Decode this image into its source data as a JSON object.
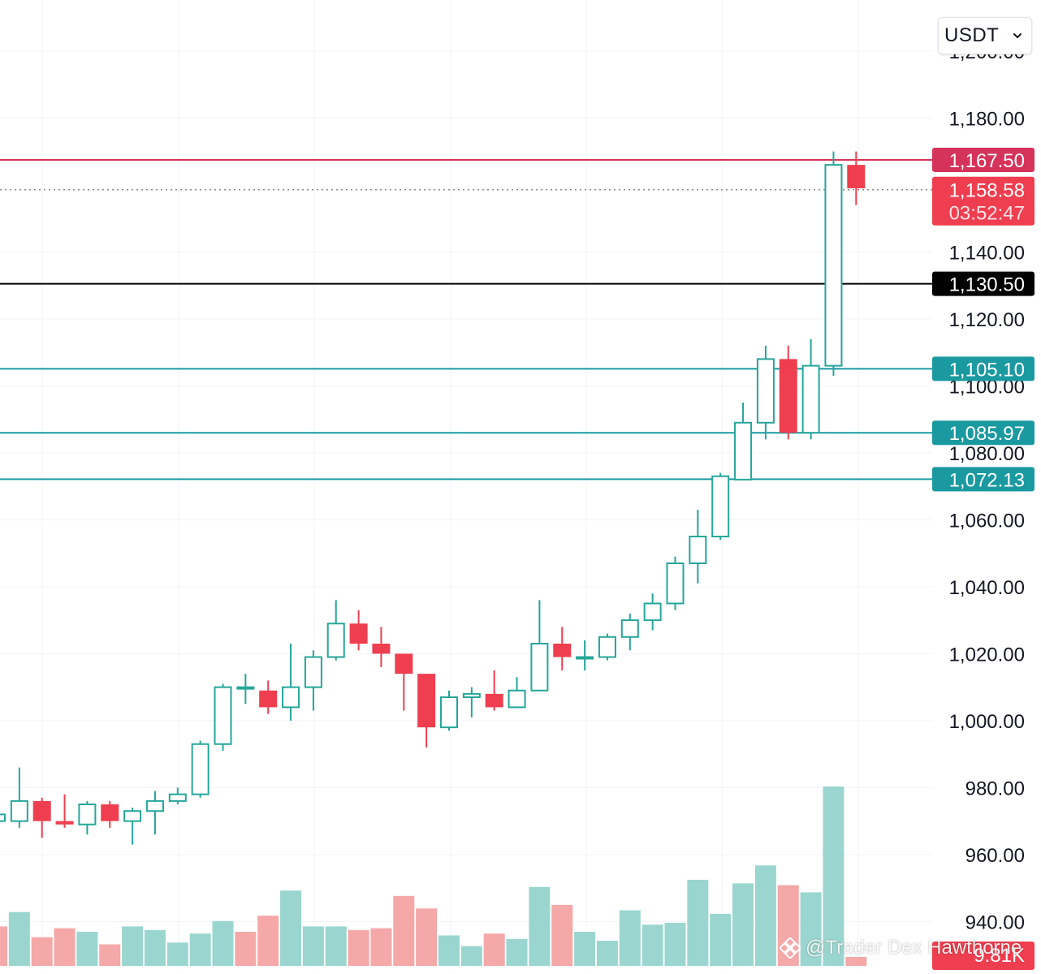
{
  "currency_select": {
    "value": "USDT"
  },
  "watermark": {
    "text": "@Trader Dex Hawthorne"
  },
  "colors": {
    "up": "#26a69a",
    "down": "#ef3e4f",
    "up_volume": "#9ad6cf",
    "down_volume": "#f5a8a8",
    "grid": "#f0f3fa",
    "axis_text": "#131722",
    "resistance_line": "#d6335a",
    "level_line_black": "#000000",
    "support_line": "#1a9aa0"
  },
  "chart_data": {
    "type": "candlestick",
    "price_axis": {
      "ticks": [
        "1,200.00",
        "1,180.00",
        "1,140.00",
        "1,120.00",
        "1,100.00",
        "1,080.00",
        "1,060.00",
        "1,040.00",
        "1,020.00",
        "1,000.00",
        "980.00",
        "960.00",
        "940.00"
      ],
      "ylim": [
        935,
        1207
      ]
    },
    "candles": [
      {
        "o": 970,
        "h": 975,
        "l": 968,
        "c": 972
      },
      {
        "o": 970,
        "h": 986,
        "l": 968,
        "c": 976
      },
      {
        "o": 976,
        "h": 977,
        "l": 965,
        "c": 970
      },
      {
        "o": 970,
        "h": 978,
        "l": 968,
        "c": 969
      },
      {
        "o": 969,
        "h": 976,
        "l": 966,
        "c": 975
      },
      {
        "o": 975,
        "h": 976,
        "l": 968,
        "c": 970
      },
      {
        "o": 970,
        "h": 974,
        "l": 963,
        "c": 973
      },
      {
        "o": 973,
        "h": 979,
        "l": 966,
        "c": 976
      },
      {
        "o": 976,
        "h": 980,
        "l": 975,
        "c": 978
      },
      {
        "o": 978,
        "h": 994,
        "l": 977,
        "c": 993
      },
      {
        "o": 993,
        "h": 1011,
        "l": 991,
        "c": 1010
      },
      {
        "o": 1010,
        "h": 1014,
        "l": 1005,
        "c": 1010
      },
      {
        "o": 1009,
        "h": 1012,
        "l": 1002,
        "c": 1004
      },
      {
        "o": 1004,
        "h": 1023,
        "l": 1000,
        "c": 1010
      },
      {
        "o": 1010,
        "h": 1021,
        "l": 1003,
        "c": 1019
      },
      {
        "o": 1019,
        "h": 1036,
        "l": 1018,
        "c": 1029
      },
      {
        "o": 1029,
        "h": 1033,
        "l": 1021,
        "c": 1023
      },
      {
        "o": 1023,
        "h": 1028,
        "l": 1016,
        "c": 1020
      },
      {
        "o": 1020,
        "h": 1020,
        "l": 1003,
        "c": 1014
      },
      {
        "o": 1014,
        "h": 1014,
        "l": 992,
        "c": 998
      },
      {
        "o": 998,
        "h": 1009,
        "l": 997,
        "c": 1007
      },
      {
        "o": 1007,
        "h": 1010,
        "l": 1001,
        "c": 1008
      },
      {
        "o": 1008,
        "h": 1015,
        "l": 1003,
        "c": 1004
      },
      {
        "o": 1004,
        "h": 1013,
        "l": 1004,
        "c": 1009
      },
      {
        "o": 1009,
        "h": 1036,
        "l": 1009,
        "c": 1023
      },
      {
        "o": 1023,
        "h": 1028,
        "l": 1015,
        "c": 1019
      },
      {
        "o": 1019,
        "h": 1024,
        "l": 1015,
        "c": 1019
      },
      {
        "o": 1019,
        "h": 1026,
        "l": 1018,
        "c": 1025
      },
      {
        "o": 1025,
        "h": 1032,
        "l": 1021,
        "c": 1030
      },
      {
        "o": 1030,
        "h": 1038,
        "l": 1027,
        "c": 1035
      },
      {
        "o": 1035,
        "h": 1049,
        "l": 1033,
        "c": 1047
      },
      {
        "o": 1047,
        "h": 1063,
        "l": 1041,
        "c": 1055
      },
      {
        "o": 1055,
        "h": 1074,
        "l": 1054,
        "c": 1073
      },
      {
        "o": 1072,
        "h": 1095,
        "l": 1072,
        "c": 1089
      },
      {
        "o": 1089,
        "h": 1112,
        "l": 1084,
        "c": 1108
      },
      {
        "o": 1108,
        "h": 1112,
        "l": 1084,
        "c": 1086
      },
      {
        "o": 1086,
        "h": 1114,
        "l": 1084,
        "c": 1106
      },
      {
        "o": 1106,
        "h": 1170,
        "l": 1103,
        "c": 1166
      },
      {
        "o": 1166,
        "h": 1170,
        "l": 1154,
        "c": 1159
      }
    ],
    "volume": {
      "label": "9.81K",
      "max": 100,
      "bars": [
        {
          "v": 22,
          "d": "down"
        },
        {
          "v": 30,
          "d": "up"
        },
        {
          "v": 16,
          "d": "down"
        },
        {
          "v": 21,
          "d": "down"
        },
        {
          "v": 19,
          "d": "up"
        },
        {
          "v": 12,
          "d": "down"
        },
        {
          "v": 22,
          "d": "up"
        },
        {
          "v": 20,
          "d": "up"
        },
        {
          "v": 13,
          "d": "up"
        },
        {
          "v": 18,
          "d": "up"
        },
        {
          "v": 25,
          "d": "up"
        },
        {
          "v": 19,
          "d": "down"
        },
        {
          "v": 28,
          "d": "down"
        },
        {
          "v": 42,
          "d": "up"
        },
        {
          "v": 22,
          "d": "up"
        },
        {
          "v": 22,
          "d": "up"
        },
        {
          "v": 20,
          "d": "down"
        },
        {
          "v": 21,
          "d": "down"
        },
        {
          "v": 39,
          "d": "down"
        },
        {
          "v": 32,
          "d": "down"
        },
        {
          "v": 17,
          "d": "up"
        },
        {
          "v": 11,
          "d": "up"
        },
        {
          "v": 18,
          "d": "down"
        },
        {
          "v": 15,
          "d": "up"
        },
        {
          "v": 44,
          "d": "up"
        },
        {
          "v": 34,
          "d": "down"
        },
        {
          "v": 19,
          "d": "up"
        },
        {
          "v": 14,
          "d": "up"
        },
        {
          "v": 31,
          "d": "up"
        },
        {
          "v": 23,
          "d": "up"
        },
        {
          "v": 24,
          "d": "up"
        },
        {
          "v": 48,
          "d": "up"
        },
        {
          "v": 29,
          "d": "up"
        },
        {
          "v": 46,
          "d": "up"
        },
        {
          "v": 56,
          "d": "up"
        },
        {
          "v": 45,
          "d": "down"
        },
        {
          "v": 41,
          "d": "up"
        },
        {
          "v": 100,
          "d": "up"
        },
        {
          "v": 5,
          "d": "down"
        }
      ]
    },
    "horizontal_levels": [
      {
        "price": 1167.5,
        "label": "1,167.50",
        "style": "resistance"
      },
      {
        "price": 1130.5,
        "label": "1,130.50",
        "style": "black"
      },
      {
        "price": 1105.1,
        "label": "1,105.10",
        "style": "support"
      },
      {
        "price": 1085.97,
        "label": "1,085.97",
        "style": "support"
      },
      {
        "price": 1072.13,
        "label": "1,072.13",
        "style": "support"
      }
    ],
    "last_price": {
      "price": 1158.58,
      "label": "1,158.58",
      "countdown": "03:52:47"
    }
  }
}
